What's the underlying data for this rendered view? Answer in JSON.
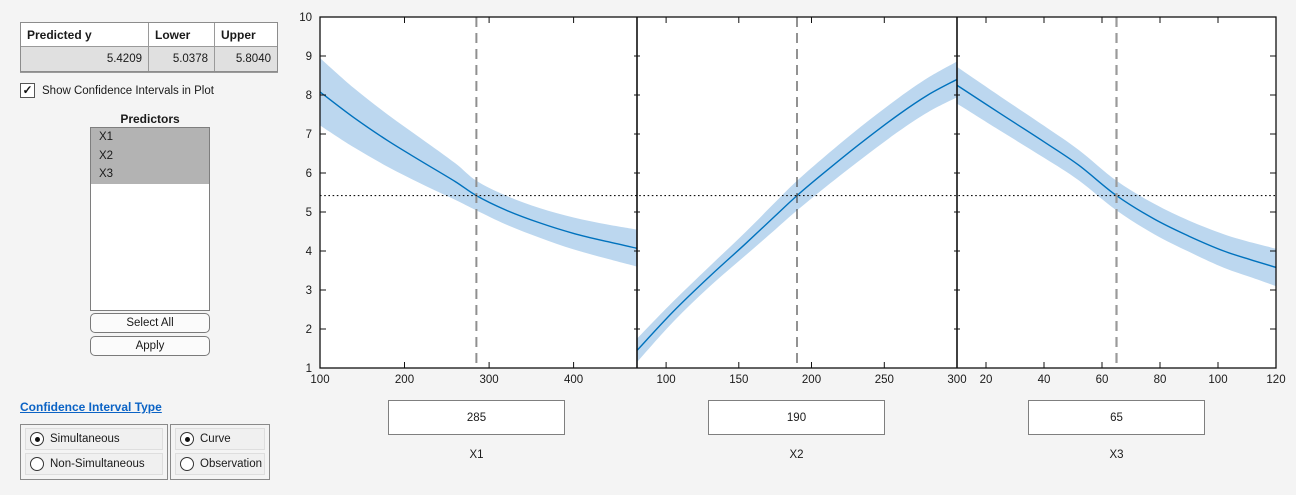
{
  "results_table": {
    "headers": [
      "Predicted y",
      "Lower",
      "Upper"
    ],
    "values": [
      "5.4209",
      "5.0378",
      "5.8040"
    ]
  },
  "icons": {
    "check": "✓"
  },
  "show_ci_checkbox": {
    "label": "Show Confidence Intervals in Plot",
    "checked": true
  },
  "predictors_panel": {
    "title": "Predictors",
    "items": [
      {
        "label": "X1",
        "selected": true
      },
      {
        "label": "X2",
        "selected": true
      },
      {
        "label": "X3",
        "selected": true
      }
    ],
    "select_all_label": "Select All",
    "apply_label": "Apply"
  },
  "ci_type": {
    "link_label": "Confidence Interval Type",
    "link_color": "#0b63c5",
    "groups": [
      {
        "options": [
          {
            "label": "Simultaneous",
            "selected": true
          },
          {
            "label": "Non-Simultaneous",
            "selected": false
          }
        ]
      },
      {
        "options": [
          {
            "label": "Curve",
            "selected": true
          },
          {
            "label": "Observation",
            "selected": false
          }
        ]
      }
    ]
  },
  "sliders": [
    {
      "value": "285",
      "label": "X1"
    },
    {
      "value": "190",
      "label": "X2"
    },
    {
      "value": "65",
      "label": "X3"
    }
  ],
  "chart_data": {
    "type": "line",
    "title": "",
    "xlabel": "",
    "ylabel": "",
    "ylim": [
      1,
      10
    ],
    "yticks": [
      1,
      2,
      3,
      4,
      5,
      6,
      7,
      8,
      9,
      10
    ],
    "predicted_y": 5.4209,
    "ci_lower": 5.0378,
    "ci_upper": 5.804,
    "grid": false,
    "legend": "none",
    "line_color": "#0072BD",
    "band_color": "#BCD7EF",
    "dotted_line_color": "#111111",
    "panels": [
      {
        "predictor": "X1",
        "xlim": [
          100,
          475
        ],
        "xticks": [
          100,
          200,
          300,
          400
        ],
        "current_x": 285,
        "dash_color": "#8f8f8f",
        "dash_width": 2.0,
        "x": [
          100,
          140,
          180,
          220,
          260,
          285,
          320,
          360,
          400,
          440,
          475
        ],
        "y": [
          8.08,
          7.42,
          6.83,
          6.3,
          5.78,
          5.42,
          5.05,
          4.72,
          4.45,
          4.24,
          4.07
        ],
        "hi": [
          8.95,
          8.18,
          7.5,
          6.88,
          6.25,
          5.8,
          5.42,
          5.1,
          4.86,
          4.68,
          4.55
        ],
        "lo": [
          7.22,
          6.66,
          6.16,
          5.72,
          5.31,
          5.04,
          4.68,
          4.34,
          4.04,
          3.8,
          3.6
        ]
      },
      {
        "predictor": "X2",
        "xlim": [
          80,
          300
        ],
        "xticks": [
          100,
          150,
          200,
          250,
          300
        ],
        "current_x": 190,
        "dash_color": "#4a4a4a",
        "dash_width": 1.2,
        "x": [
          80,
          105,
          130,
          155,
          175,
          190,
          210,
          235,
          260,
          280,
          300
        ],
        "y": [
          1.45,
          2.45,
          3.35,
          4.2,
          4.9,
          5.42,
          6.05,
          6.8,
          7.5,
          8.0,
          8.4
        ],
        "hi": [
          1.75,
          2.71,
          3.61,
          4.5,
          5.25,
          5.8,
          6.45,
          7.22,
          7.93,
          8.44,
          8.86
        ],
        "lo": [
          1.15,
          2.19,
          3.09,
          3.9,
          4.55,
          5.04,
          5.65,
          6.38,
          7.07,
          7.56,
          7.94
        ]
      },
      {
        "predictor": "X3",
        "xlim": [
          10,
          120
        ],
        "xticks": [
          20,
          40,
          60,
          80,
          100,
          120
        ],
        "current_x": 65,
        "dash_color": "#9a9a9a",
        "dash_width": 2.2,
        "x": [
          10,
          25,
          40,
          52,
          65,
          78,
          90,
          102,
          112,
          120
        ],
        "y": [
          8.25,
          7.52,
          6.8,
          6.2,
          5.42,
          4.82,
          4.38,
          4.0,
          3.76,
          3.58
        ],
        "hi": [
          8.72,
          7.96,
          7.21,
          6.59,
          5.8,
          5.21,
          4.78,
          4.43,
          4.21,
          4.06
        ],
        "lo": [
          7.78,
          7.08,
          6.39,
          5.81,
          5.04,
          4.43,
          3.98,
          3.57,
          3.31,
          3.1
        ]
      }
    ]
  }
}
